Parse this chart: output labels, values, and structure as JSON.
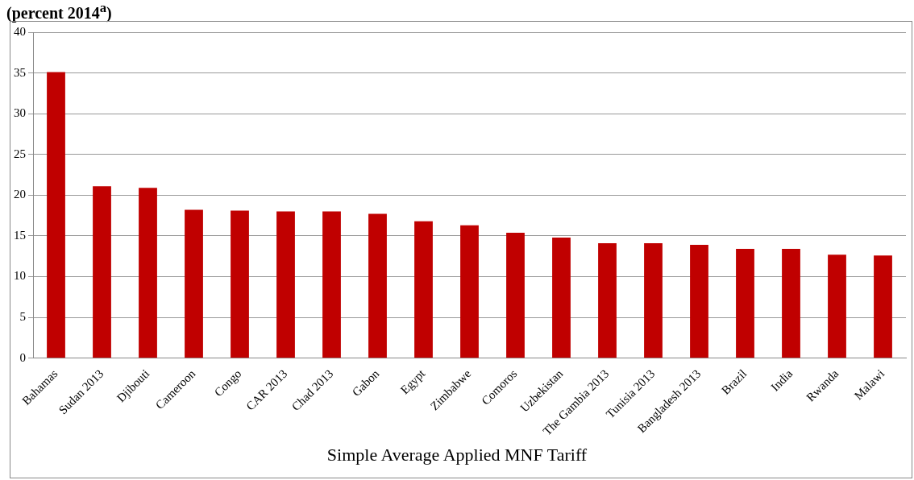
{
  "chart_data": {
    "type": "bar",
    "title": "(percent 2014$^{a}$)",
    "xlabel": "Simple Average Applied MNF Tariff",
    "categories": [
      "Bahamas",
      "Sudan 2013",
      "Djibouti",
      "Cameroon",
      "Congo",
      "CAR 2013",
      "Chad 2013",
      "Gabon",
      "Egypt",
      "Zimbabwe",
      "Comoros",
      "Uzbekistan",
      "The Gambia 2013",
      "Tunisia 2013",
      "Bangladesh 2013",
      "Brazil",
      "India",
      "Rwanda",
      "Malawi"
    ],
    "values": [
      35.1,
      21.1,
      20.9,
      18.2,
      18.1,
      18.0,
      18.0,
      17.7,
      16.8,
      16.3,
      15.4,
      14.8,
      14.1,
      14.1,
      13.9,
      13.4,
      13.4,
      12.7,
      12.6
    ],
    "color": "#c00000",
    "ylim": [
      0,
      40
    ],
    "yticks": [
      0,
      5,
      10,
      15,
      20,
      25,
      30,
      35,
      40
    ],
    "grid": "y",
    "legend": false
  }
}
